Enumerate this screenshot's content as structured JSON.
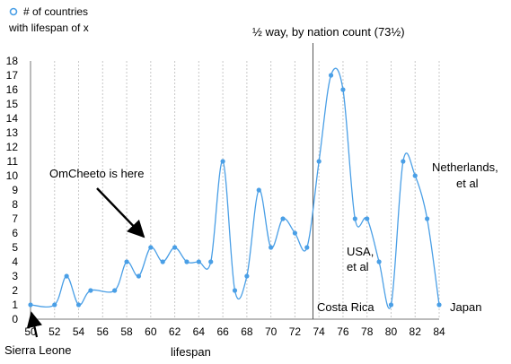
{
  "chart_data": {
    "type": "line",
    "xlabel": "lifespan",
    "ylabel": "",
    "xlim": [
      50,
      84
    ],
    "ylim": [
      0,
      18
    ],
    "x_ticks": [
      "50",
      "52",
      "54",
      "56",
      "58",
      "60",
      "62",
      "64",
      "66",
      "68",
      "70",
      "72",
      "74",
      "76",
      "78",
      "80",
      "82",
      "84"
    ],
    "y_ticks": [
      "0",
      "1",
      "2",
      "3",
      "4",
      "5",
      "6",
      "7",
      "8",
      "9",
      "10",
      "11",
      "12",
      "13",
      "14",
      "15",
      "16",
      "17",
      "18"
    ],
    "grid": "vertical dashed",
    "legend_position": "top-left",
    "series_color": "#4a9fe6",
    "series": [
      {
        "name": "# of countries with lifespan of x",
        "x": [
          50,
          52,
          53,
          54,
          55,
          57,
          58,
          59,
          60,
          61,
          62,
          63,
          64,
          65,
          66,
          67,
          68,
          69,
          70,
          71,
          72,
          73,
          74,
          75,
          76,
          77,
          78,
          79,
          80,
          81,
          82,
          83,
          84
        ],
        "values": [
          1,
          1,
          3,
          1,
          2,
          2,
          4,
          3,
          5,
          4,
          5,
          4,
          4,
          4,
          11,
          2,
          3,
          9,
          5,
          7,
          6,
          5,
          11,
          17,
          16,
          7,
          7,
          4,
          1,
          11,
          10,
          7,
          1
        ]
      }
    ],
    "legend_lines": [
      "# of countries",
      "with lifespan of x"
    ],
    "midline": {
      "x": 73.5,
      "label": "½ way, by nation count (73½)"
    },
    "annotations": {
      "omcheeto": "OmCheeto is here",
      "sierra_leone": "Sierra Leone",
      "costa_rica": "Costa Rica",
      "usa_line1": "USA,",
      "usa_line2": "et al",
      "netherlands_line1": "Netherlands,",
      "netherlands_line2": "et al",
      "japan": "Japan"
    }
  }
}
